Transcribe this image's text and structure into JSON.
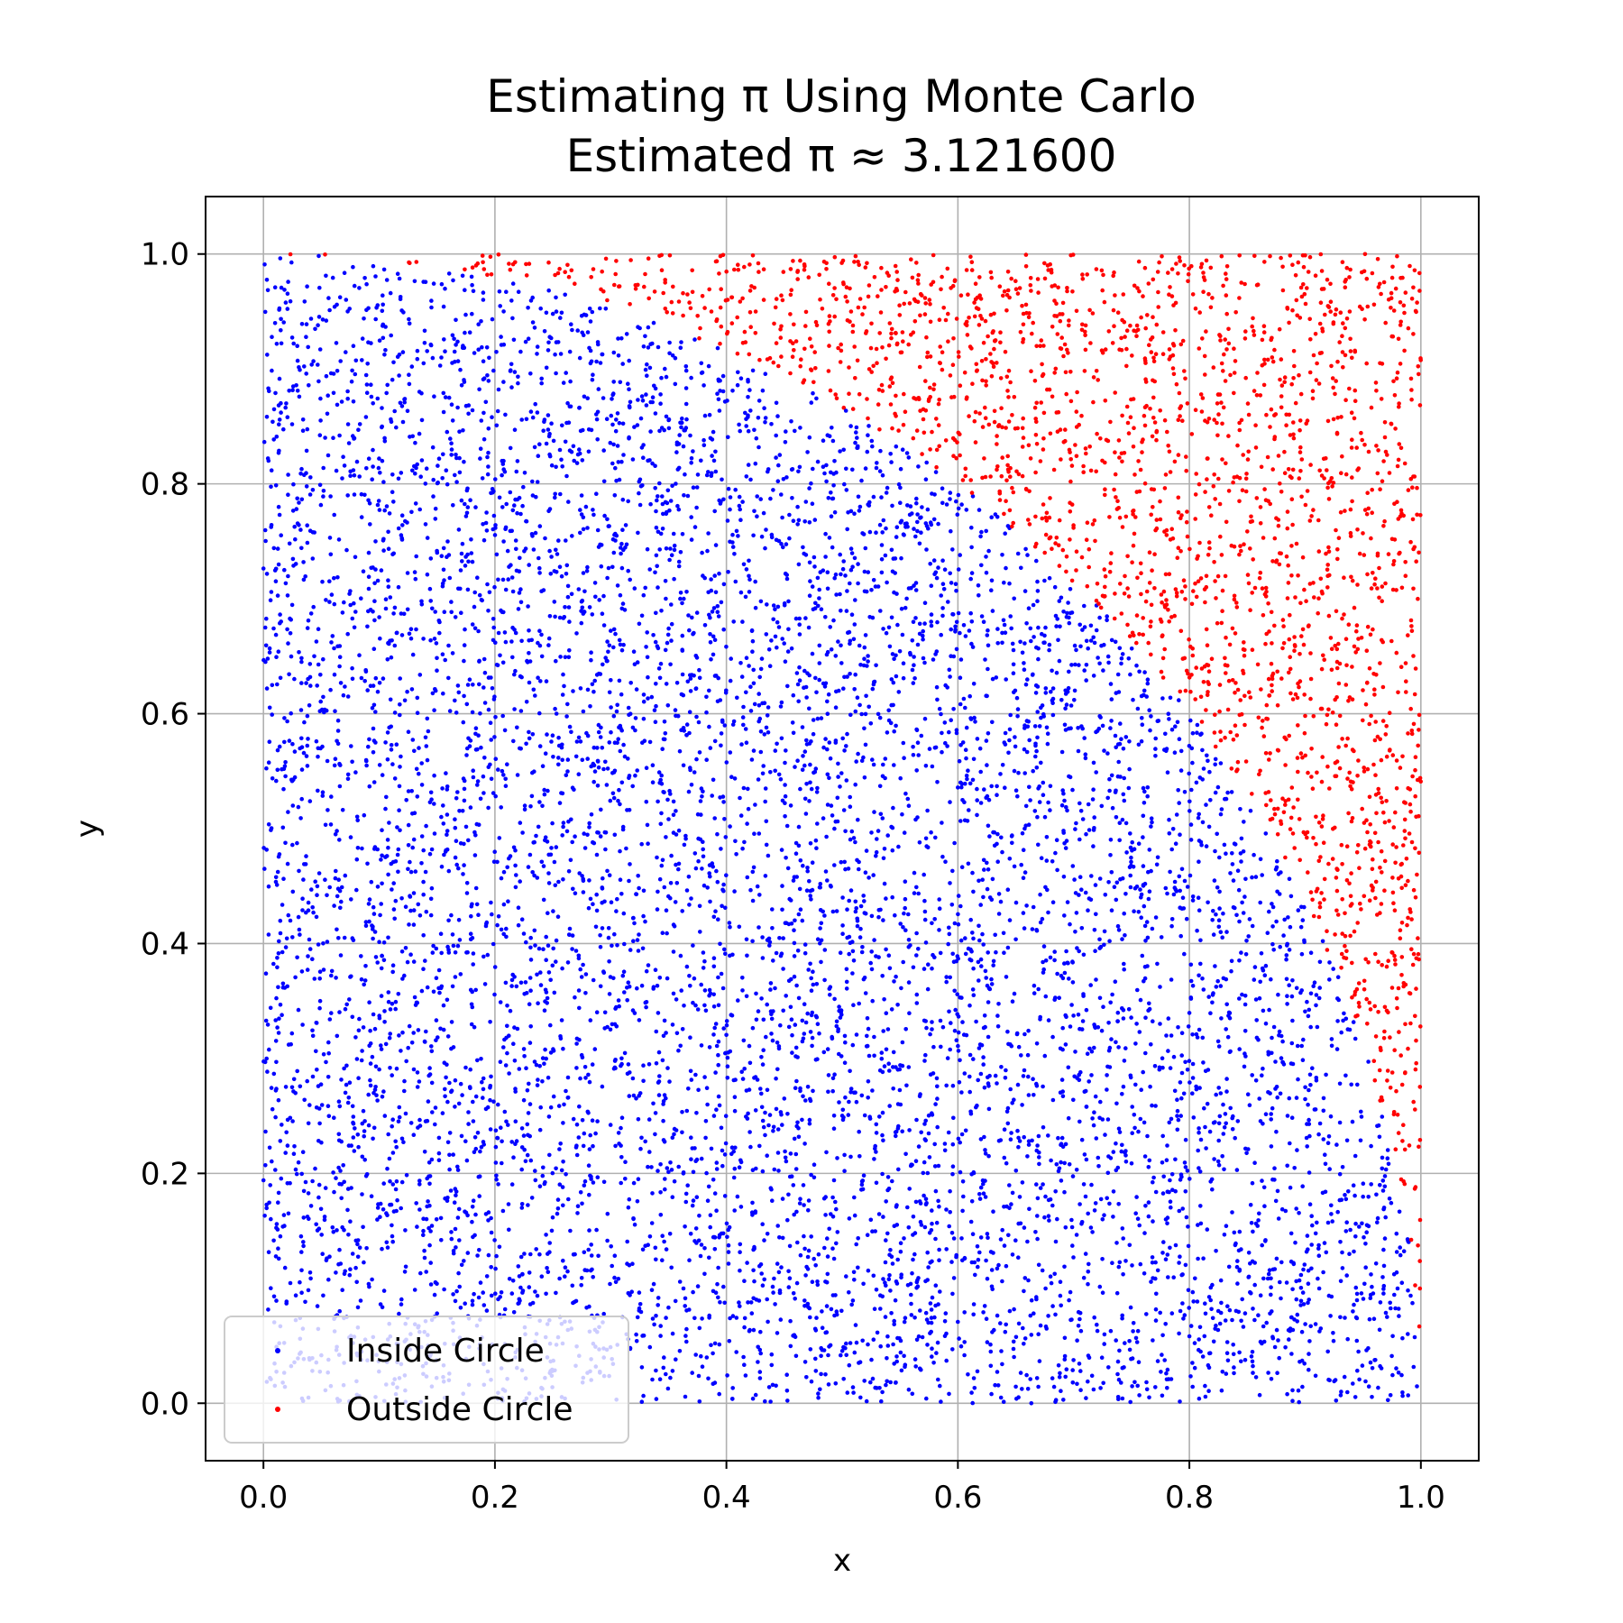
{
  "chart_data": {
    "type": "scatter",
    "title": [
      "Estimating π Using Monte Carlo",
      "Estimated π ≈ 3.121600"
    ],
    "xlabel": "x",
    "ylabel": "y",
    "xlim": [
      -0.05,
      1.05
    ],
    "ylim": [
      -0.05,
      1.05
    ],
    "xticks": [
      0.0,
      0.2,
      0.4,
      0.6,
      0.8,
      1.0
    ],
    "yticks": [
      0.0,
      0.2,
      0.4,
      0.6,
      0.8,
      1.0
    ],
    "tick_labels": [
      "0.0",
      "0.2",
      "0.4",
      "0.6",
      "0.8",
      "1.0"
    ],
    "grid": true,
    "legend_position": "lower-left",
    "estimate": 3.1216,
    "series": [
      {
        "name": "Inside Circle",
        "color": "#0000ff",
        "rule": "x^2 + y^2 <= 1"
      },
      {
        "name": "Outside Circle",
        "color": "#ff0000",
        "rule": "x^2 + y^2 > 1"
      }
    ]
  }
}
